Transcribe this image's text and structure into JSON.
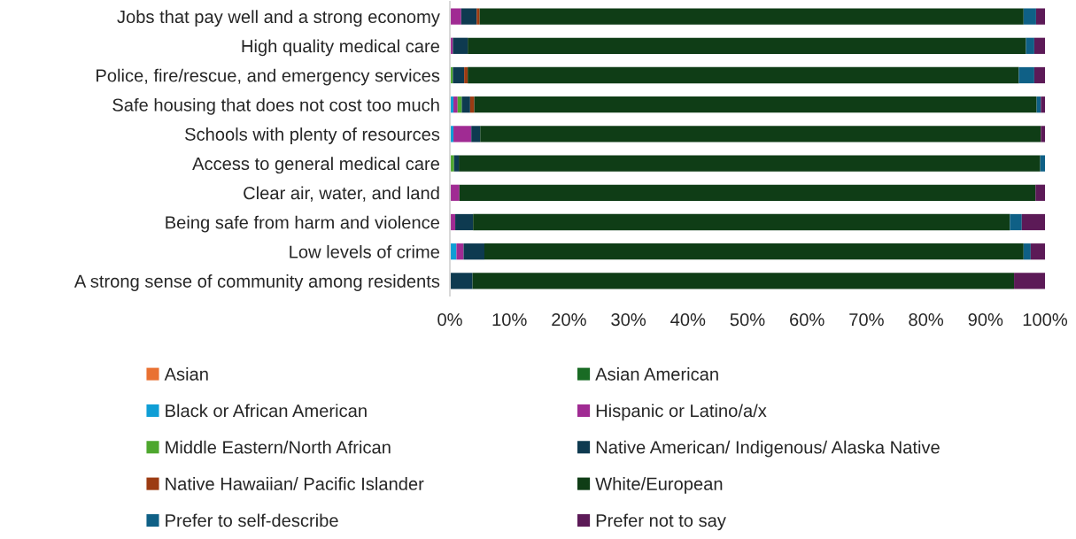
{
  "chart_data": {
    "type": "bar",
    "orientation": "horizontal",
    "stacked": true,
    "categories": [
      "Jobs that pay well and a strong economy",
      "High quality medical care",
      "Police, fire/rescue, and emergency services",
      "Safe housing that does not cost too much",
      "Schools with plenty of resources",
      "Access to general medical care",
      "Clear air, water, and land",
      "Being safe from harm and violence",
      "Low levels of crime",
      "A strong sense of community among residents"
    ],
    "series": [
      {
        "name": "Asian",
        "color": "#e97132",
        "values": [
          0,
          0,
          0,
          0,
          0,
          0,
          0,
          0,
          0,
          0
        ]
      },
      {
        "name": "Asian American",
        "color": "#196b24",
        "values": [
          0,
          0,
          0,
          0,
          0,
          0,
          0,
          0,
          0,
          0
        ]
      },
      {
        "name": "Black or African American",
        "color": "#0f9ed5",
        "values": [
          0,
          0,
          0,
          0.6,
          0.6,
          0,
          0,
          0,
          1.1,
          0
        ]
      },
      {
        "name": "Hispanic or Latino/a/x",
        "color": "#a02b93",
        "values": [
          1.9,
          0.5,
          0,
          0.7,
          3.0,
          0,
          1.6,
          0.9,
          1.2,
          0
        ]
      },
      {
        "name": "Middle Eastern/North African",
        "color": "#4ea72e",
        "values": [
          0,
          0,
          0.5,
          0.7,
          0,
          0.7,
          0,
          0,
          0,
          0
        ]
      },
      {
        "name": "Native American/ Indigenous/ Alaska Native",
        "color": "#0e3a50",
        "values": [
          2.6,
          2.5,
          1.9,
          1.4,
          1.5,
          0.8,
          0,
          3.0,
          3.5,
          3.8
        ]
      },
      {
        "name": "Native Hawaiian/ Pacific Islander",
        "color": "#9c3b12",
        "values": [
          0.5,
          0,
          0.6,
          0.7,
          0,
          0,
          0,
          0,
          0,
          0
        ]
      },
      {
        "name": "White/European",
        "color": "#0f3d16",
        "values": [
          91.4,
          93.8,
          92.6,
          94.5,
          94.2,
          97.7,
          96.8,
          90.2,
          90.6,
          91.0
        ]
      },
      {
        "name": "Prefer to self-describe",
        "color": "#0f6086",
        "values": [
          2.1,
          1.4,
          2.6,
          0.7,
          0,
          0.8,
          0,
          2.0,
          1.2,
          0
        ]
      },
      {
        "name": "Prefer not to say",
        "color": "#5c1a57",
        "values": [
          1.5,
          1.8,
          1.8,
          0.7,
          0.7,
          0,
          1.6,
          3.9,
          2.4,
          5.2
        ]
      }
    ],
    "xlim": [
      0,
      100
    ],
    "xticks": [
      {
        "value": 0,
        "label": "0%"
      },
      {
        "value": 10,
        "label": "10%"
      },
      {
        "value": 20,
        "label": "20%"
      },
      {
        "value": 30,
        "label": "30%"
      },
      {
        "value": 40,
        "label": "40%"
      },
      {
        "value": 50,
        "label": "50%"
      },
      {
        "value": 60,
        "label": "60%"
      },
      {
        "value": 70,
        "label": "70%"
      },
      {
        "value": 80,
        "label": "80%"
      },
      {
        "value": 90,
        "label": "90%"
      },
      {
        "value": 100,
        "label": "100%"
      }
    ],
    "grid": false,
    "legend": "bottom"
  }
}
